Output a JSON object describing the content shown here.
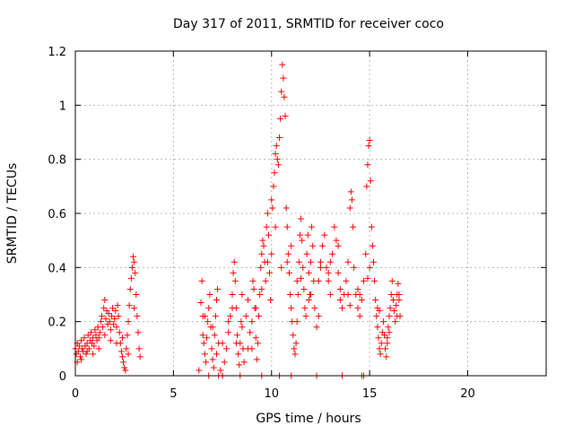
{
  "chart_data": {
    "type": "scatter",
    "title": "Day 317 of 2011, SRMTID for receiver coco",
    "xlabel": "GPS time / hours",
    "ylabel": "SRMTID / TECUs",
    "xlim": [
      0,
      24
    ],
    "ylim": [
      0,
      1.2
    ],
    "xticks": [
      0,
      5,
      10,
      15,
      20
    ],
    "xtick_labels": [
      "0",
      "5",
      "10",
      "15",
      "20"
    ],
    "yticks": [
      0,
      0.2,
      0.4,
      0.6,
      0.8,
      1.0,
      1.2
    ],
    "ytick_labels": [
      "0",
      "0.2",
      "0.4",
      "0.6",
      "0.8",
      "1",
      "1.2"
    ],
    "grid": true,
    "marker": "+",
    "color": "#ff0000",
    "series": [
      {
        "name": "SRMTID",
        "points": [
          [
            0.0,
            0.1
          ],
          [
            0.05,
            0.08
          ],
          [
            0.1,
            0.12
          ],
          [
            0.15,
            0.09
          ],
          [
            0.2,
            0.11
          ],
          [
            0.25,
            0.07
          ],
          [
            0.3,
            0.13
          ],
          [
            0.35,
            0.1
          ],
          [
            0.4,
            0.09
          ],
          [
            0.45,
            0.14
          ],
          [
            0.5,
            0.11
          ],
          [
            0.55,
            0.08
          ],
          [
            0.6,
            0.12
          ],
          [
            0.65,
            0.15
          ],
          [
            0.7,
            0.1
          ],
          [
            0.75,
            0.13
          ],
          [
            0.8,
            0.16
          ],
          [
            0.85,
            0.12
          ],
          [
            0.9,
            0.14
          ],
          [
            0.95,
            0.11
          ],
          [
            1.0,
            0.17
          ],
          [
            1.05,
            0.15
          ],
          [
            1.1,
            0.13
          ],
          [
            1.15,
            0.18
          ],
          [
            1.2,
            0.14
          ],
          [
            1.25,
            0.16
          ],
          [
            1.3,
            0.2
          ],
          [
            1.35,
            0.22
          ],
          [
            1.4,
            0.18
          ],
          [
            1.45,
            0.25
          ],
          [
            1.5,
            0.28
          ],
          [
            1.55,
            0.21
          ],
          [
            1.6,
            0.24
          ],
          [
            1.65,
            0.19
          ],
          [
            1.7,
            0.23
          ],
          [
            1.75,
            0.2
          ],
          [
            1.8,
            0.17
          ],
          [
            1.85,
            0.22
          ],
          [
            1.9,
            0.25
          ],
          [
            1.95,
            0.19
          ],
          [
            2.0,
            0.21
          ],
          [
            2.05,
            0.24
          ],
          [
            2.1,
            0.18
          ],
          [
            2.15,
            0.26
          ],
          [
            2.2,
            0.22
          ],
          [
            2.25,
            0.16
          ],
          [
            2.3,
            0.12
          ],
          [
            2.35,
            0.09
          ],
          [
            2.4,
            0.07
          ],
          [
            2.45,
            0.05
          ],
          [
            2.5,
            0.03
          ],
          [
            2.55,
            0.02
          ],
          [
            2.6,
            0.1
          ],
          [
            2.65,
            0.15
          ],
          [
            2.7,
            0.2
          ],
          [
            2.75,
            0.26
          ],
          [
            2.8,
            0.32
          ],
          [
            2.85,
            0.36
          ],
          [
            2.9,
            0.4
          ],
          [
            2.95,
            0.44
          ],
          [
            3.0,
            0.42
          ],
          [
            3.05,
            0.38
          ],
          [
            3.1,
            0.3
          ],
          [
            3.15,
            0.22
          ],
          [
            3.2,
            0.16
          ],
          [
            3.25,
            0.1
          ],
          [
            3.3,
            0.07
          ],
          [
            0.1,
            0.05
          ],
          [
            0.3,
            0.06
          ],
          [
            0.6,
            0.09
          ],
          [
            0.9,
            0.08
          ],
          [
            1.2,
            0.1
          ],
          [
            1.5,
            0.15
          ],
          [
            1.8,
            0.13
          ],
          [
            2.1,
            0.12
          ],
          [
            2.4,
            0.14
          ],
          [
            2.7,
            0.08
          ],
          [
            3.0,
            0.25
          ],
          [
            6.3,
            0.02
          ],
          [
            6.4,
            0.27
          ],
          [
            6.45,
            0.35
          ],
          [
            6.5,
            0.22
          ],
          [
            6.55,
            0.12
          ],
          [
            6.6,
            0.08
          ],
          [
            6.65,
            0.05
          ],
          [
            6.7,
            0.14
          ],
          [
            6.75,
            0.2
          ],
          [
            6.8,
            0.25
          ],
          [
            6.85,
            0.3
          ],
          [
            6.9,
            0.18
          ],
          [
            6.95,
            0.1
          ],
          [
            7.0,
            0.06
          ],
          [
            7.05,
            0.03
          ],
          [
            7.1,
            0.15
          ],
          [
            7.15,
            0.22
          ],
          [
            7.2,
            0.28
          ],
          [
            7.25,
            0.32
          ],
          [
            7.3,
            0.12
          ],
          [
            7.4,
            0.02
          ],
          [
            7.5,
            0.0
          ],
          [
            7.6,
            0.05
          ],
          [
            7.7,
            0.1
          ],
          [
            7.8,
            0.16
          ],
          [
            7.9,
            0.22
          ],
          [
            8.0,
            0.3
          ],
          [
            8.05,
            0.38
          ],
          [
            8.1,
            0.42
          ],
          [
            8.15,
            0.35
          ],
          [
            8.2,
            0.25
          ],
          [
            8.25,
            0.15
          ],
          [
            8.3,
            0.08
          ],
          [
            8.35,
            0.04
          ],
          [
            8.4,
            0.12
          ],
          [
            8.45,
            0.2
          ],
          [
            8.5,
            0.18
          ],
          [
            8.55,
            0.1
          ],
          [
            8.6,
            0.05
          ],
          [
            8.7,
            0.22
          ],
          [
            8.8,
            0.28
          ],
          [
            8.9,
            0.16
          ],
          [
            9.0,
            0.1
          ],
          [
            9.05,
            0.35
          ],
          [
            9.1,
            0.32
          ],
          [
            9.15,
            0.25
          ],
          [
            9.2,
            0.14
          ],
          [
            9.25,
            0.06
          ],
          [
            9.3,
            0.12
          ],
          [
            9.35,
            0.22
          ],
          [
            9.4,
            0.3
          ],
          [
            9.45,
            0.4
          ],
          [
            9.5,
            0.45
          ],
          [
            9.55,
            0.5
          ],
          [
            9.6,
            0.48
          ],
          [
            9.65,
            0.42
          ],
          [
            9.7,
            0.35
          ],
          [
            9.75,
            0.55
          ],
          [
            9.8,
            0.6
          ],
          [
            9.85,
            0.52
          ],
          [
            9.9,
            0.38
          ],
          [
            9.95,
            0.28
          ],
          [
            10.0,
            0.65
          ],
          [
            10.05,
            0.62
          ],
          [
            10.1,
            0.7
          ],
          [
            10.15,
            0.75
          ],
          [
            10.2,
            0.82
          ],
          [
            10.25,
            0.85
          ],
          [
            10.3,
            0.8
          ],
          [
            10.35,
            0.78
          ],
          [
            10.4,
            0.88
          ],
          [
            10.45,
            0.95
          ],
          [
            10.5,
            1.05
          ],
          [
            10.55,
            1.15
          ],
          [
            10.6,
            1.1
          ],
          [
            10.65,
            1.03
          ],
          [
            10.7,
            0.96
          ],
          [
            10.75,
            0.62
          ],
          [
            10.8,
            0.55
          ],
          [
            10.85,
            0.45
          ],
          [
            10.9,
            0.38
          ],
          [
            10.95,
            0.3
          ],
          [
            11.0,
            0.25
          ],
          [
            11.05,
            0.2
          ],
          [
            11.1,
            0.15
          ],
          [
            11.15,
            0.1
          ],
          [
            11.2,
            0.08
          ],
          [
            11.25,
            0.12
          ],
          [
            11.3,
            0.2
          ],
          [
            11.35,
            0.3
          ],
          [
            11.4,
            0.42
          ],
          [
            11.45,
            0.52
          ],
          [
            11.5,
            0.58
          ],
          [
            11.55,
            0.5
          ],
          [
            11.6,
            0.4
          ],
          [
            11.65,
            0.32
          ],
          [
            11.7,
            0.25
          ],
          [
            11.75,
            0.22
          ],
          [
            11.8,
            0.45
          ],
          [
            11.85,
            0.52
          ],
          [
            11.9,
            0.38
          ],
          [
            11.95,
            0.3
          ],
          [
            12.0,
            0.42
          ],
          [
            12.05,
            0.55
          ],
          [
            12.1,
            0.48
          ],
          [
            12.15,
            0.35
          ],
          [
            12.2,
            0.25
          ],
          [
            12.3,
            0.18
          ],
          [
            12.4,
            0.35
          ],
          [
            12.5,
            0.42
          ],
          [
            12.6,
            0.48
          ],
          [
            12.7,
            0.52
          ],
          [
            12.8,
            0.4
          ],
          [
            12.9,
            0.35
          ],
          [
            13.0,
            0.3
          ],
          [
            13.1,
            0.45
          ],
          [
            13.2,
            0.55
          ],
          [
            13.3,
            0.5
          ],
          [
            13.4,
            0.38
          ],
          [
            13.5,
            0.28
          ],
          [
            13.6,
            0.25
          ],
          [
            13.7,
            0.3
          ],
          [
            13.8,
            0.35
          ],
          [
            13.9,
            0.42
          ],
          [
            14.0,
            0.62
          ],
          [
            14.05,
            0.68
          ],
          [
            14.1,
            0.65
          ],
          [
            14.15,
            0.55
          ],
          [
            14.2,
            0.4
          ],
          [
            14.3,
            0.3
          ],
          [
            14.4,
            0.25
          ],
          [
            14.5,
            0.22
          ],
          [
            14.6,
            0.28
          ],
          [
            14.7,
            0.35
          ],
          [
            14.8,
            0.45
          ],
          [
            14.85,
            0.7
          ],
          [
            14.9,
            0.78
          ],
          [
            14.95,
            0.85
          ],
          [
            15.0,
            0.87
          ],
          [
            15.05,
            0.72
          ],
          [
            15.1,
            0.55
          ],
          [
            15.15,
            0.48
          ],
          [
            15.2,
            0.42
          ],
          [
            15.25,
            0.35
          ],
          [
            15.3,
            0.28
          ],
          [
            15.35,
            0.22
          ],
          [
            15.4,
            0.18
          ],
          [
            15.45,
            0.14
          ],
          [
            15.5,
            0.1
          ],
          [
            15.55,
            0.08
          ],
          [
            15.6,
            0.12
          ],
          [
            15.65,
            0.16
          ],
          [
            15.7,
            0.2
          ],
          [
            15.75,
            0.15
          ],
          [
            15.8,
            0.1
          ],
          [
            15.85,
            0.07
          ],
          [
            15.9,
            0.12
          ],
          [
            15.95,
            0.18
          ],
          [
            16.0,
            0.22
          ],
          [
            16.05,
            0.25
          ],
          [
            16.1,
            0.3
          ],
          [
            16.15,
            0.35
          ],
          [
            16.2,
            0.28
          ],
          [
            16.25,
            0.24
          ],
          [
            16.3,
            0.2
          ],
          [
            16.35,
            0.26
          ],
          [
            16.4,
            0.3
          ],
          [
            16.45,
            0.34
          ],
          [
            16.5,
            0.28
          ],
          [
            16.55,
            0.22
          ],
          [
            6.8,
            0.0
          ],
          [
            7.3,
            0.0
          ],
          [
            7.5,
            0.0
          ],
          [
            8.4,
            0.0
          ],
          [
            9.5,
            0.0
          ],
          [
            10.4,
            0.0
          ],
          [
            11.0,
            0.0
          ],
          [
            12.3,
            0.0
          ],
          [
            13.6,
            0.0
          ],
          [
            14.6,
            0.0
          ],
          [
            14.7,
            0.0
          ],
          [
            6.5,
            0.15
          ],
          [
            7.0,
            0.18
          ],
          [
            7.5,
            0.12
          ],
          [
            8.0,
            0.25
          ],
          [
            8.5,
            0.3
          ],
          [
            9.0,
            0.2
          ],
          [
            9.5,
            0.32
          ],
          [
            10.0,
            0.45
          ],
          [
            10.5,
            0.4
          ],
          [
            11.0,
            0.48
          ],
          [
            11.5,
            0.36
          ],
          [
            12.0,
            0.3
          ],
          [
            12.5,
            0.4
          ],
          [
            13.0,
            0.42
          ],
          [
            13.5,
            0.32
          ],
          [
            14.0,
            0.26
          ],
          [
            14.5,
            0.3
          ],
          [
            15.0,
            0.4
          ],
          [
            15.5,
            0.24
          ],
          [
            16.0,
            0.16
          ],
          [
            16.5,
            0.3
          ],
          [
            6.6,
            0.22
          ],
          [
            7.2,
            0.08
          ],
          [
            7.8,
            0.2
          ],
          [
            8.2,
            0.12
          ],
          [
            8.8,
            0.1
          ],
          [
            9.2,
            0.25
          ],
          [
            9.8,
            0.42
          ],
          [
            10.2,
            0.55
          ],
          [
            10.8,
            0.42
          ],
          [
            11.3,
            0.35
          ],
          [
            11.9,
            0.28
          ],
          [
            12.4,
            0.22
          ],
          [
            12.9,
            0.38
          ],
          [
            13.4,
            0.48
          ],
          [
            13.9,
            0.3
          ],
          [
            14.4,
            0.32
          ],
          [
            14.9,
            0.36
          ],
          [
            15.4,
            0.25
          ],
          [
            15.9,
            0.14
          ],
          [
            16.4,
            0.22
          ]
        ]
      }
    ]
  }
}
